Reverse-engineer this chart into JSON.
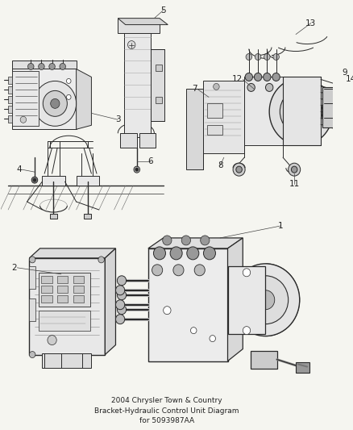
{
  "title": "2004 Chrysler Town & Country\nBracket-Hydraulic Control Unit Diagram\nfor 5093987AA",
  "bg_color": "#f5f5f0",
  "fig_width": 4.39,
  "fig_height": 5.33,
  "dpi": 100,
  "lc": "#2a2a2a",
  "lc_light": "#888888",
  "lw": 0.7,
  "font_size_label": 7.5,
  "font_size_title": 6.5
}
